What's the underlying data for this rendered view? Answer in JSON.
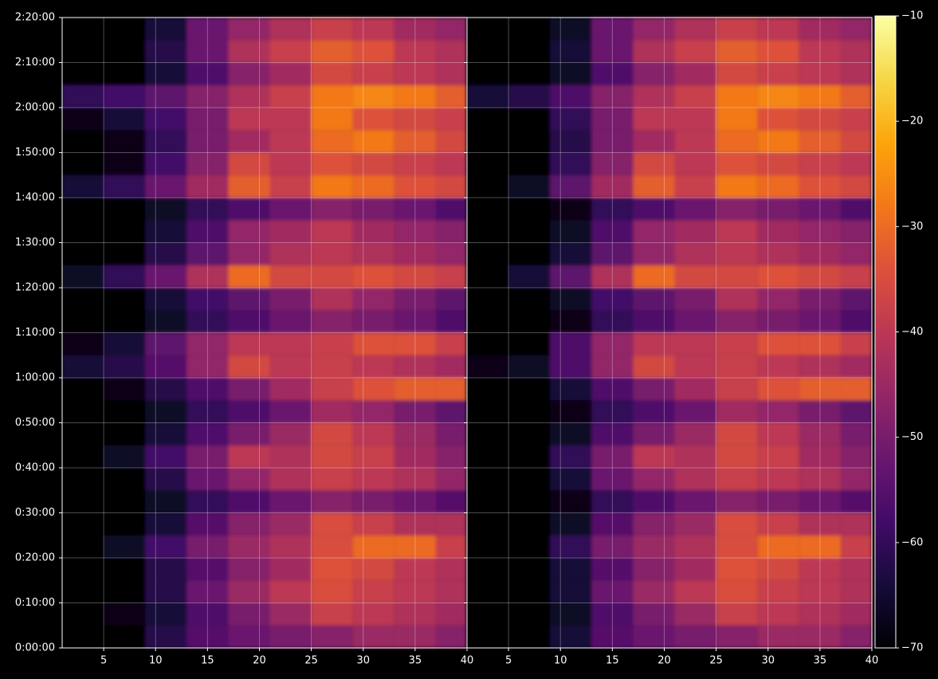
{
  "chart_data": [
    {
      "type": "heatmap",
      "cmap": "inferno",
      "clim": [
        -70,
        -10
      ],
      "grid": true,
      "xlim": [
        1,
        40
      ],
      "xticks": [
        5,
        10,
        15,
        20,
        25,
        30,
        35,
        40
      ],
      "ylim": [
        0,
        8400
      ],
      "yticks": [
        {
          "value": 0,
          "label": "0:00:00"
        },
        {
          "value": 600,
          "label": "0:10:00"
        },
        {
          "value": 1200,
          "label": "0:20:00"
        },
        {
          "value": 1800,
          "label": "0:30:00"
        },
        {
          "value": 2400,
          "label": "0:40:00"
        },
        {
          "value": 3000,
          "label": "0:50:00"
        },
        {
          "value": 3600,
          "label": "1:00:00"
        },
        {
          "value": 4200,
          "label": "1:10:00"
        },
        {
          "value": 4800,
          "label": "1:20:00"
        },
        {
          "value": 5400,
          "label": "1:30:00"
        },
        {
          "value": 6000,
          "label": "1:40:00"
        },
        {
          "value": 6600,
          "label": "1:50:00"
        },
        {
          "value": 7200,
          "label": "2:00:00"
        },
        {
          "value": 7800,
          "label": "2:10:00"
        },
        {
          "value": 8400,
          "label": "2:20:00"
        }
      ],
      "xbins": [
        1,
        5,
        9,
        13,
        17,
        21,
        25,
        29,
        33,
        37,
        40
      ],
      "ybins": [
        0,
        300,
        600,
        900,
        1200,
        1500,
        1800,
        2100,
        2400,
        2700,
        3000,
        3300,
        3600,
        3900,
        4200,
        4500,
        4800,
        5100,
        5400,
        5700,
        6000,
        6300,
        6600,
        6900,
        7200,
        7500,
        7800,
        8100,
        8400
      ],
      "values": [
        [
          -70,
          -70,
          -62,
          -55,
          -52,
          -50,
          -48,
          -45,
          -45,
          -48
        ],
        [
          -70,
          -68,
          -64,
          -56,
          -50,
          -45,
          -38,
          -40,
          -42,
          -44
        ],
        [
          -70,
          -70,
          -62,
          -52,
          -45,
          -40,
          -35,
          -38,
          -40,
          -42
        ],
        [
          -70,
          -70,
          -62,
          -55,
          -48,
          -44,
          -34,
          -36,
          -40,
          -42
        ],
        [
          -70,
          -66,
          -58,
          -50,
          -45,
          -42,
          -35,
          -30,
          -30,
          -38
        ],
        [
          -70,
          -70,
          -64,
          -55,
          -48,
          -45,
          -35,
          -38,
          -42,
          -42
        ],
        [
          -70,
          -70,
          -66,
          -60,
          -56,
          -52,
          -48,
          -50,
          -52,
          -55
        ],
        [
          -70,
          -70,
          -62,
          -52,
          -46,
          -42,
          -38,
          -40,
          -42,
          -46
        ],
        [
          -70,
          -66,
          -58,
          -50,
          -40,
          -42,
          -36,
          -38,
          -44,
          -48
        ],
        [
          -70,
          -70,
          -64,
          -56,
          -50,
          -45,
          -36,
          -40,
          -45,
          -50
        ],
        [
          -70,
          -70,
          -66,
          -60,
          -56,
          -52,
          -44,
          -46,
          -50,
          -54
        ],
        [
          -70,
          -68,
          -62,
          -56,
          -50,
          -44,
          -38,
          -34,
          -32,
          -32
        ],
        [
          -64,
          -62,
          -55,
          -46,
          -36,
          -40,
          -38,
          -40,
          -42,
          -44
        ],
        [
          -68,
          -64,
          -54,
          -46,
          -40,
          -40,
          -38,
          -34,
          -34,
          -38
        ],
        [
          -70,
          -70,
          -66,
          -60,
          -56,
          -52,
          -48,
          -50,
          -52,
          -56
        ],
        [
          -70,
          -70,
          -64,
          -58,
          -54,
          -50,
          -42,
          -46,
          -50,
          -54
        ],
        [
          -66,
          -60,
          -52,
          -42,
          -30,
          -36,
          -36,
          -34,
          -36,
          -38
        ],
        [
          -70,
          -70,
          -62,
          -54,
          -46,
          -42,
          -40,
          -42,
          -44,
          -46
        ],
        [
          -70,
          -70,
          -64,
          -56,
          -46,
          -44,
          -40,
          -44,
          -46,
          -48
        ],
        [
          -70,
          -70,
          -66,
          -60,
          -56,
          -52,
          -48,
          -50,
          -52,
          -56
        ],
        [
          -64,
          -60,
          -52,
          -44,
          -32,
          -38,
          -28,
          -30,
          -34,
          -36
        ],
        [
          -70,
          -68,
          -58,
          -48,
          -36,
          -40,
          -34,
          -36,
          -38,
          -40
        ],
        [
          -70,
          -68,
          -60,
          -50,
          -44,
          -40,
          -30,
          -28,
          -32,
          -36
        ],
        [
          -68,
          -64,
          -58,
          -50,
          -40,
          -40,
          -28,
          -34,
          -36,
          -38
        ],
        [
          -60,
          -58,
          -54,
          -48,
          -42,
          -38,
          -28,
          -26,
          -28,
          -32
        ],
        [
          -70,
          -70,
          -64,
          -56,
          -48,
          -44,
          -36,
          -38,
          -40,
          -42
        ],
        [
          -70,
          -70,
          -62,
          -52,
          -42,
          -38,
          -32,
          -34,
          -40,
          -42
        ],
        [
          -70,
          -70,
          -64,
          -52,
          -46,
          -42,
          -38,
          -40,
          -44,
          -46
        ]
      ]
    },
    {
      "type": "heatmap",
      "cmap": "inferno",
      "clim": [
        -70,
        -10
      ],
      "grid": true,
      "xlim": [
        1,
        40
      ],
      "xticks": [
        5,
        10,
        15,
        20,
        25,
        30,
        35,
        40
      ],
      "ylim": [
        0,
        8400
      ],
      "yticks": [
        0,
        600,
        1200,
        1800,
        2400,
        3000,
        3600,
        4200,
        4800,
        5400,
        6000,
        6600,
        7200,
        7800,
        8400
      ],
      "cticks": [
        {
          "value": -70,
          "label": "−70"
        },
        {
          "value": -60,
          "label": "−60"
        },
        {
          "value": -50,
          "label": "−50"
        },
        {
          "value": -40,
          "label": "−40"
        },
        {
          "value": -30,
          "label": "−30"
        },
        {
          "value": -20,
          "label": "−20"
        },
        {
          "value": -10,
          "label": "−10"
        }
      ],
      "xbins": [
        1,
        5,
        9,
        13,
        17,
        21,
        25,
        29,
        33,
        37,
        40
      ],
      "ybins": [
        0,
        300,
        600,
        900,
        1200,
        1500,
        1800,
        2100,
        2400,
        2700,
        3000,
        3300,
        3600,
        3900,
        4200,
        4500,
        4800,
        5100,
        5400,
        5700,
        6000,
        6300,
        6600,
        6900,
        7200,
        7500,
        7800,
        8100,
        8400
      ],
      "values": [
        [
          -70,
          -70,
          -64,
          -55,
          -52,
          -50,
          -48,
          -45,
          -45,
          -48
        ],
        [
          -70,
          -70,
          -66,
          -56,
          -50,
          -45,
          -38,
          -40,
          -42,
          -44
        ],
        [
          -70,
          -70,
          -64,
          -52,
          -45,
          -40,
          -35,
          -38,
          -40,
          -42
        ],
        [
          -70,
          -70,
          -64,
          -55,
          -48,
          -44,
          -34,
          -36,
          -40,
          -42
        ],
        [
          -70,
          -70,
          -60,
          -50,
          -45,
          -42,
          -35,
          -30,
          -30,
          -38
        ],
        [
          -70,
          -70,
          -66,
          -55,
          -48,
          -45,
          -35,
          -38,
          -42,
          -42
        ],
        [
          -70,
          -70,
          -68,
          -60,
          -56,
          -52,
          -48,
          -50,
          -52,
          -55
        ],
        [
          -70,
          -70,
          -64,
          -52,
          -46,
          -42,
          -38,
          -40,
          -42,
          -46
        ],
        [
          -70,
          -70,
          -60,
          -50,
          -40,
          -42,
          -36,
          -38,
          -44,
          -48
        ],
        [
          -70,
          -70,
          -66,
          -56,
          -50,
          -45,
          -36,
          -40,
          -45,
          -50
        ],
        [
          -70,
          -70,
          -68,
          -60,
          -56,
          -52,
          -44,
          -46,
          -50,
          -54
        ],
        [
          -70,
          -70,
          -64,
          -56,
          -50,
          -44,
          -38,
          -34,
          -32,
          -32
        ],
        [
          -68,
          -66,
          -56,
          -46,
          -36,
          -40,
          -38,
          -40,
          -42,
          -44
        ],
        [
          -70,
          -70,
          -56,
          -46,
          -40,
          -40,
          -38,
          -34,
          -34,
          -38
        ],
        [
          -70,
          -70,
          -68,
          -60,
          -56,
          -52,
          -48,
          -50,
          -52,
          -56
        ],
        [
          -70,
          -70,
          -66,
          -58,
          -54,
          -50,
          -42,
          -46,
          -50,
          -54
        ],
        [
          -70,
          -64,
          -54,
          -42,
          -30,
          -36,
          -36,
          -34,
          -36,
          -38
        ],
        [
          -70,
          -70,
          -64,
          -54,
          -46,
          -42,
          -40,
          -42,
          -44,
          -46
        ],
        [
          -70,
          -70,
          -66,
          -56,
          -46,
          -44,
          -40,
          -44,
          -46,
          -48
        ],
        [
          -70,
          -70,
          -68,
          -60,
          -56,
          -52,
          -48,
          -50,
          -52,
          -56
        ],
        [
          -70,
          -66,
          -54,
          -44,
          -32,
          -38,
          -28,
          -30,
          -34,
          -36
        ],
        [
          -70,
          -70,
          -60,
          -48,
          -36,
          -40,
          -34,
          -36,
          -38,
          -40
        ],
        [
          -70,
          -70,
          -62,
          -50,
          -44,
          -40,
          -30,
          -28,
          -32,
          -36
        ],
        [
          -70,
          -70,
          -60,
          -50,
          -40,
          -40,
          -28,
          -34,
          -36,
          -38
        ],
        [
          -64,
          -62,
          -56,
          -48,
          -42,
          -38,
          -28,
          -26,
          -28,
          -32
        ],
        [
          -70,
          -70,
          -66,
          -56,
          -48,
          -44,
          -36,
          -38,
          -40,
          -42
        ],
        [
          -70,
          -70,
          -64,
          -52,
          -42,
          -38,
          -32,
          -34,
          -40,
          -42
        ],
        [
          -70,
          -70,
          -66,
          -52,
          -46,
          -42,
          -38,
          -40,
          -44,
          -46
        ]
      ]
    }
  ]
}
